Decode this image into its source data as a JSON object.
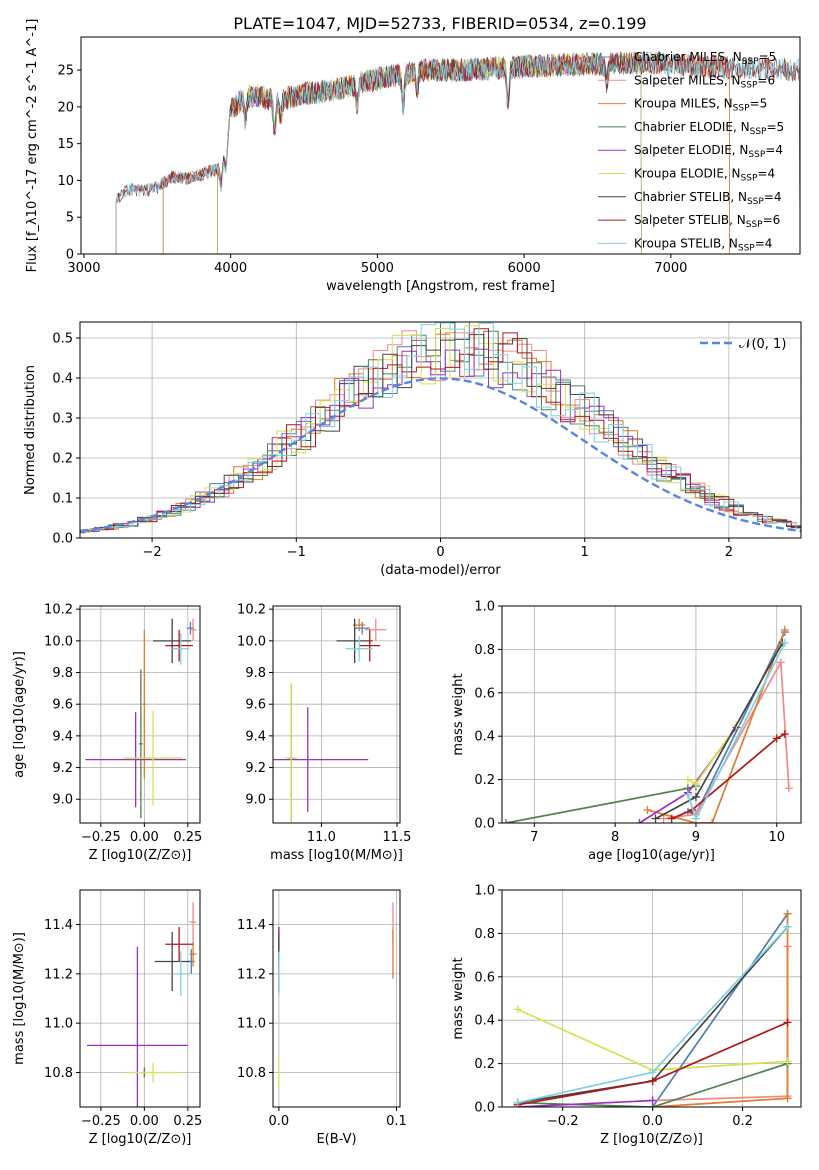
{
  "figure_title": "PLATE=1047, MJD=52733, FIBERID=0534, z=0.199",
  "colors": {
    "Chabrier MILES": "#4f7fb5",
    "Salpeter MILES": "#f08a8a",
    "Kroupa MILES": "#e07b30",
    "Chabrier ELODIE": "#4f8050",
    "Salpeter ELODIE": "#9b30c0",
    "Kroupa ELODIE": "#d8e050",
    "Chabrier STELIB": "#444444",
    "Salpeter STELIB": "#b01818",
    "Kroupa STELIB": "#7fd0e0",
    "normal": "#5588dd",
    "grid": "#b0b0b0"
  },
  "chart_data": [
    {
      "id": "spectrum",
      "type": "line",
      "title": "PLATE=1047, MJD=52733, FIBERID=0534, z=0.199",
      "xlabel": "wavelength [Angstrom, rest frame]",
      "ylabel": "Flux [f_λ10^-17 erg cm^-2 s^-1 A^-1]",
      "xlim": [
        2980,
        7880
      ],
      "ylim": [
        0,
        29.5
      ],
      "xticks": [
        3000,
        4000,
        5000,
        6000,
        7000
      ],
      "yticks": [
        0,
        5,
        10,
        15,
        20,
        25
      ],
      "grid": false,
      "legend_position": "upper-right",
      "legend": [
        "Chabrier MILES, N_SSP=5",
        "Salpeter MILES, N_SSP=6",
        "Kroupa MILES, N_SSP=5",
        "Chabrier ELODIE, N_SSP=5",
        "Salpeter ELODIE, N_SSP=4",
        "Kroupa ELODIE, N_SSP=4",
        "Chabrier STELIB, N_SSP=4",
        "Salpeter STELIB, N_SSP=6",
        "Kroupa STELIB, N_SSP=4"
      ],
      "series": [
        {
          "name": "Chabrier MILES, N_SSP=5",
          "x_range": [
            3540,
            7400
          ]
        },
        {
          "name": "Salpeter MILES, N_SSP=6",
          "x_range": [
            3540,
            7400
          ]
        },
        {
          "name": "Kroupa MILES, N_SSP=5",
          "x_range": [
            3540,
            7400
          ]
        },
        {
          "name": "Chabrier ELODIE, N_SSP=5",
          "x_range": [
            3910,
            6800
          ]
        },
        {
          "name": "Salpeter ELODIE, N_SSP=4",
          "x_range": [
            3910,
            6800
          ]
        },
        {
          "name": "Kroupa ELODIE, N_SSP=4",
          "x_range": [
            3910,
            6800
          ]
        },
        {
          "name": "Chabrier STELIB, N_SSP=4",
          "x_range": [
            3220,
            7880
          ]
        },
        {
          "name": "Salpeter STELIB, N_SSP=6",
          "x_range": [
            3220,
            7880
          ]
        },
        {
          "name": "Kroupa STELIB, N_SSP=4",
          "x_range": [
            3220,
            7880
          ]
        }
      ],
      "continuum": {
        "x": [
          3220,
          3300,
          3400,
          3500,
          3600,
          3700,
          3800,
          3900,
          3950,
          4000,
          4100,
          4200,
          4300,
          4500,
          4700,
          5000,
          5300,
          5600,
          6000,
          6400,
          6800,
          7200,
          7600,
          7880
        ],
        "y": [
          7.5,
          8.8,
          8.6,
          9.0,
          10.5,
          10.2,
          10.8,
          11.5,
          13,
          19.5,
          21.5,
          21.5,
          20.8,
          21.8,
          22.3,
          23.8,
          25.0,
          25.0,
          25.5,
          25.8,
          26.0,
          25.5,
          25.2,
          25.0
        ]
      }
    },
    {
      "id": "residuals",
      "type": "line",
      "xlabel": "(data-model)/error",
      "ylabel": "Normed distribution",
      "xlim": [
        -2.5,
        2.5
      ],
      "ylim": [
        0,
        0.54
      ],
      "xticks": [
        -2,
        -1,
        0,
        1,
        2
      ],
      "yticks": [
        0.0,
        0.1,
        0.2,
        0.3,
        0.4,
        0.5
      ],
      "grid": true,
      "legend_position": "upper-right",
      "legend": [
        "𝒩(0, 1)"
      ],
      "bin_width": 0.1,
      "reference": "standard normal pdf"
    },
    {
      "id": "age_vs_Z",
      "type": "scatter",
      "xlabel": "Z [log10(Z/Z⊙)]",
      "ylabel": "age  [log10(age/yr)]",
      "xlim": [
        -0.37,
        0.32
      ],
      "ylim": [
        8.85,
        10.22
      ],
      "xticks": [
        -0.25,
        0.0,
        0.25
      ],
      "yticks": [
        9.0,
        9.2,
        9.4,
        9.6,
        9.8,
        10.0,
        10.2
      ],
      "grid": true,
      "points": [
        {
          "series": "Chabrier MILES",
          "x": 0.265,
          "y": 10.08,
          "xerr": 0.02,
          "yerr": 0.04
        },
        {
          "series": "Salpeter MILES",
          "x": 0.28,
          "y": 10.07,
          "xerr": 0.02,
          "yerr": 0.07
        },
        {
          "series": "Kroupa MILES",
          "x": 0.0,
          "y": 9.6,
          "xerr": 0.01,
          "yerr": 0.47
        },
        {
          "series": "Chabrier ELODIE",
          "x": -0.02,
          "y": 9.35,
          "xerr": 0.01,
          "yerr": 0.47
        },
        {
          "series": "Salpeter ELODIE",
          "x": -0.05,
          "y": 9.25,
          "xerr": 0.29,
          "yerr": 0.3
        },
        {
          "series": "Kroupa ELODIE",
          "x": 0.05,
          "y": 9.26,
          "xerr": 0.17,
          "yerr": 0.3
        },
        {
          "series": "Chabrier STELIB",
          "x": 0.16,
          "y": 10.0,
          "xerr": 0.11,
          "yerr": 0.14
        },
        {
          "series": "Salpeter STELIB",
          "x": 0.2,
          "y": 9.97,
          "xerr": 0.08,
          "yerr": 0.1
        },
        {
          "series": "Kroupa STELIB",
          "x": 0.21,
          "y": 9.95,
          "xerr": 0.05,
          "yerr": 0.1
        }
      ]
    },
    {
      "id": "age_vs_mass",
      "type": "scatter",
      "xlabel": "mass [log10(M/M⊙)]",
      "xlim": [
        10.68,
        11.52
      ],
      "ylim": [
        8.85,
        10.22
      ],
      "xticks": [
        11.0,
        11.5
      ],
      "yticks": [
        9.0,
        9.2,
        9.4,
        9.6,
        9.8,
        10.0,
        10.2
      ],
      "grid": true,
      "points": [
        {
          "series": "Chabrier MILES",
          "x": 11.27,
          "y": 10.08,
          "xerr": 0.05,
          "yerr": 0.04
        },
        {
          "series": "Salpeter MILES",
          "x": 11.36,
          "y": 10.07,
          "xerr": 0.07,
          "yerr": 0.07
        },
        {
          "series": "Kroupa MILES",
          "x": 11.25,
          "y": 10.1,
          "xerr": 0.04,
          "yerr": 0.04
        },
        {
          "series": "Chabrier ELODIE",
          "x": 10.8,
          "y": 9.26,
          "xerr": 0.02,
          "yerr": 0.47
        },
        {
          "series": "Salpeter ELODIE",
          "x": 10.91,
          "y": 9.25,
          "xerr": 0.4,
          "yerr": 0.33
        },
        {
          "series": "Kroupa ELODIE",
          "x": 10.8,
          "y": 9.26,
          "xerr": 0.04,
          "yerr": 0.47
        },
        {
          "series": "Chabrier STELIB",
          "x": 11.22,
          "y": 10.0,
          "xerr": 0.12,
          "yerr": 0.14
        },
        {
          "series": "Salpeter STELIB",
          "x": 11.32,
          "y": 9.97,
          "xerr": 0.07,
          "yerr": 0.1
        },
        {
          "series": "Kroupa STELIB",
          "x": 11.25,
          "y": 9.95,
          "xerr": 0.09,
          "yerr": 0.08
        }
      ]
    },
    {
      "id": "weight_vs_age",
      "type": "line",
      "xlabel": "age  [log10(age/yr)]",
      "ylabel": "mass weight",
      "xlim": [
        6.6,
        10.3
      ],
      "ylim": [
        0,
        1.0
      ],
      "xticks": [
        7,
        8,
        9,
        10
      ],
      "yticks": [
        0.0,
        0.2,
        0.4,
        0.6,
        0.8,
        1.0
      ],
      "grid": true,
      "series": [
        {
          "name": "Chabrier MILES",
          "x": [
            8.9,
            9.0,
            10.1
          ],
          "y": [
            0.05,
            0.04,
            0.88
          ]
        },
        {
          "name": "Salpeter MILES",
          "x": [
            8.6,
            9.0,
            10.05,
            10.15
          ],
          "y": [
            0.02,
            0.04,
            0.74,
            0.16
          ]
        },
        {
          "name": "Kroupa MILES",
          "x": [
            8.4,
            9.0,
            9.2,
            10.1
          ],
          "y": [
            0.06,
            0.0,
            0.0,
            0.89
          ]
        },
        {
          "name": "Chabrier ELODIE",
          "x": [
            6.65,
            8.9,
            9.0
          ],
          "y": [
            0.0,
            0.16,
            0.17
          ]
        },
        {
          "name": "Salpeter ELODIE",
          "x": [
            8.3,
            8.9,
            9.5
          ],
          "y": [
            0.0,
            0.14,
            0.44
          ]
        },
        {
          "name": "Kroupa ELODIE",
          "x": [
            8.9,
            9.0,
            9.5
          ],
          "y": [
            0.2,
            0.18,
            0.45
          ]
        },
        {
          "name": "Chabrier STELIB",
          "x": [
            8.5,
            9.0,
            10.07
          ],
          "y": [
            0.02,
            0.12,
            0.83
          ]
        },
        {
          "name": "Salpeter STELIB",
          "x": [
            8.7,
            8.95,
            10.0,
            10.1
          ],
          "y": [
            0.02,
            0.06,
            0.39,
            0.41
          ]
        },
        {
          "name": "Kroupa STELIB",
          "x": [
            8.9,
            9.0,
            10.1
          ],
          "y": [
            0.13,
            0.02,
            0.83
          ]
        }
      ]
    },
    {
      "id": "mass_vs_Z",
      "type": "scatter",
      "xlabel": "Z [log10(Z/Z⊙)]",
      "ylabel": "mass [log10(M/M⊙)]",
      "xlim": [
        -0.37,
        0.32
      ],
      "ylim": [
        10.66,
        11.54
      ],
      "xticks": [
        -0.25,
        0.0,
        0.25
      ],
      "yticks": [
        10.8,
        11.0,
        11.2,
        11.4
      ],
      "grid": true,
      "points": [
        {
          "series": "Chabrier MILES",
          "x": 0.27,
          "y": 11.25,
          "xerr": 0.02,
          "yerr": 0.05
        },
        {
          "series": "Salpeter MILES",
          "x": 0.28,
          "y": 11.41,
          "xerr": 0.02,
          "yerr": 0.08
        },
        {
          "series": "Kroupa MILES",
          "x": 0.28,
          "y": 11.28,
          "xerr": 0.02,
          "yerr": 0.05
        },
        {
          "series": "Chabrier ELODIE",
          "x": 0.0,
          "y": 10.8,
          "xerr": 0.01,
          "yerr": 0.02
        },
        {
          "series": "Salpeter ELODIE",
          "x": -0.04,
          "y": 10.91,
          "xerr": 0.29,
          "yerr": 0.4
        },
        {
          "series": "Kroupa ELODIE",
          "x": 0.05,
          "y": 10.8,
          "xerr": 0.16,
          "yerr": 0.04
        },
        {
          "series": "Chabrier STELIB",
          "x": 0.16,
          "y": 11.25,
          "xerr": 0.1,
          "yerr": 0.12
        },
        {
          "series": "Salpeter STELIB",
          "x": 0.2,
          "y": 11.32,
          "xerr": 0.08,
          "yerr": 0.07
        },
        {
          "series": "Kroupa STELIB",
          "x": 0.21,
          "y": 11.2,
          "xerr": 0.05,
          "yerr": 0.09
        }
      ]
    },
    {
      "id": "mass_vs_ebv",
      "type": "scatter",
      "xlabel": "E(B-V)",
      "xlim": [
        -0.005,
        0.103
      ],
      "ylim": [
        10.66,
        11.54
      ],
      "xticks": [
        0.0,
        0.1
      ],
      "yticks": [
        10.8,
        11.0,
        11.2,
        11.4
      ],
      "grid": true,
      "points": [
        {
          "series": "Salpeter STELIB",
          "x": 0.0,
          "y": 11.32,
          "yerr": 0.07
        },
        {
          "series": "Chabrier STELIB",
          "x": 0.0,
          "y": 11.25,
          "yerr": 0.12
        },
        {
          "series": "Kroupa STELIB",
          "x": 0.0,
          "y": 11.2,
          "yerr": 0.09
        },
        {
          "series": "Kroupa ELODIE",
          "x": 0.0,
          "y": 10.8,
          "yerr": 0.06
        },
        {
          "series": "Salpeter MILES",
          "x": 0.097,
          "y": 11.41,
          "yerr": 0.08
        },
        {
          "series": "Kroupa MILES",
          "x": 0.097,
          "y": 11.28,
          "yerr": 0.1
        }
      ]
    },
    {
      "id": "weight_vs_Z",
      "type": "line",
      "xlabel": "Z [log10(Z/Z⊙)]",
      "ylabel": "mass weight",
      "xlim": [
        -0.335,
        0.33
      ],
      "ylim": [
        0,
        1.0
      ],
      "xticks": [
        -0.2,
        0.0,
        0.2
      ],
      "yticks": [
        0.0,
        0.2,
        0.4,
        0.6,
        0.8,
        1.0
      ],
      "grid": true,
      "series": [
        {
          "name": "Chabrier MILES",
          "x": [
            0.0,
            0.3
          ],
          "y": [
            0.0,
            0.89
          ]
        },
        {
          "name": "Salpeter MILES",
          "x": [
            0.0,
            0.3,
            0.3
          ],
          "y": [
            0.03,
            0.05,
            0.74
          ]
        },
        {
          "name": "Kroupa MILES",
          "x": [
            0.0,
            0.3,
            0.3
          ],
          "y": [
            0.0,
            0.04,
            0.89
          ]
        },
        {
          "name": "Chabrier ELODIE",
          "x": [
            -0.3,
            0.0,
            0.3
          ],
          "y": [
            0.02,
            0.0,
            0.2
          ]
        },
        {
          "name": "Salpeter ELODIE",
          "x": [
            -0.3,
            0.0
          ],
          "y": [
            0.0,
            0.03
          ]
        },
        {
          "name": "Kroupa ELODIE",
          "x": [
            -0.3,
            0.0,
            0.3
          ],
          "y": [
            0.45,
            0.17,
            0.21
          ]
        },
        {
          "name": "Chabrier STELIB",
          "x": [
            -0.3,
            0.0,
            0.3
          ],
          "y": [
            0.02,
            0.12,
            0.83
          ]
        },
        {
          "name": "Salpeter STELIB",
          "x": [
            -0.3,
            0.0,
            0.3
          ],
          "y": [
            0.01,
            0.12,
            0.39
          ]
        },
        {
          "name": "Kroupa STELIB",
          "x": [
            -0.3,
            0.0,
            0.3
          ],
          "y": [
            0.02,
            0.16,
            0.83
          ]
        }
      ]
    }
  ]
}
